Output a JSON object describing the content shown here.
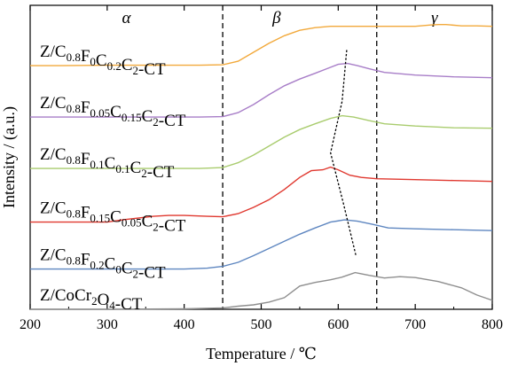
{
  "chart_data": {
    "type": "line",
    "xlabel": "Temperature / ℃",
    "ylabel": "Intensity / (a.u.)",
    "xlim": [
      200,
      800
    ],
    "xticks": [
      200,
      300,
      400,
      500,
      600,
      700,
      800
    ],
    "ylim": [
      0,
      6.8
    ],
    "grid": false,
    "y_ticks_shown": false,
    "region_labels": [
      {
        "text": "α",
        "x": 325
      },
      {
        "text": "β",
        "x": 520
      },
      {
        "text": "γ",
        "x": 725
      }
    ],
    "vertical_lines": [
      450,
      650
    ],
    "peak_trend_points": [
      [
        611,
        5.8
      ],
      [
        605,
        4.65
      ],
      [
        590,
        3.5
      ],
      [
        607,
        2.35
      ],
      [
        623,
        1.2
      ]
    ],
    "series": [
      {
        "name": "Z/C0.8F0C0.2C2-CT",
        "parts": [
          [
            "Z/C",
            ""
          ],
          [
            "0.8",
            "sub"
          ],
          [
            "F",
            ""
          ],
          [
            "0",
            "sub"
          ],
          [
            "C",
            ""
          ],
          [
            "0.2",
            "sub"
          ],
          [
            "C",
            ""
          ],
          [
            "2",
            "sub"
          ],
          [
            "-CT",
            ""
          ]
        ],
        "color": "#F2A93B",
        "x": [
          200,
          240,
          300,
          360,
          420,
          450,
          470,
          490,
          510,
          530,
          550,
          570,
          590,
          610,
          630,
          660,
          700,
          720,
          730,
          740,
          760,
          780,
          800
        ],
        "y": [
          5.45,
          5.45,
          5.46,
          5.46,
          5.46,
          5.47,
          5.55,
          5.75,
          5.95,
          6.12,
          6.24,
          6.3,
          6.33,
          6.33,
          6.33,
          6.33,
          6.33,
          6.36,
          6.37,
          6.37,
          6.34,
          6.34,
          6.33
        ]
      },
      {
        "name": "Z/C0.8F0.05C0.15C2-CT",
        "parts": [
          [
            "Z/C",
            ""
          ],
          [
            "0.8",
            "sub"
          ],
          [
            "F",
            ""
          ],
          [
            "0.05",
            "sub"
          ],
          [
            "C",
            ""
          ],
          [
            "0.15",
            "sub"
          ],
          [
            "C",
            ""
          ],
          [
            "2",
            "sub"
          ],
          [
            "-CT",
            ""
          ]
        ],
        "color": "#A87EC8",
        "x": [
          200,
          300,
          420,
          450,
          470,
          490,
          510,
          530,
          550,
          570,
          585,
          600,
          612,
          625,
          640,
          660,
          700,
          750,
          800
        ],
        "y": [
          4.3,
          4.3,
          4.3,
          4.31,
          4.4,
          4.58,
          4.8,
          5.0,
          5.15,
          5.28,
          5.38,
          5.48,
          5.5,
          5.45,
          5.38,
          5.3,
          5.24,
          5.2,
          5.18
        ]
      },
      {
        "name": "Z/C0.8F0.1C0.1C2-CT",
        "parts": [
          [
            "Z/C",
            ""
          ],
          [
            "0.8",
            "sub"
          ],
          [
            "F",
            ""
          ],
          [
            "0.1",
            "sub"
          ],
          [
            "C",
            ""
          ],
          [
            "0.1",
            "sub"
          ],
          [
            "C",
            ""
          ],
          [
            "2",
            "sub"
          ],
          [
            "-CT",
            ""
          ]
        ],
        "color": "#A9CC6E",
        "x": [
          200,
          300,
          420,
          450,
          470,
          490,
          510,
          530,
          550,
          570,
          590,
          605,
          620,
          640,
          660,
          700,
          750,
          800
        ],
        "y": [
          3.15,
          3.15,
          3.15,
          3.17,
          3.28,
          3.45,
          3.65,
          3.85,
          4.02,
          4.15,
          4.27,
          4.33,
          4.3,
          4.22,
          4.15,
          4.1,
          4.06,
          4.05
        ]
      },
      {
        "name": "Z/C0.8F0.15C0.05C2-CT",
        "parts": [
          [
            "Z/C",
            ""
          ],
          [
            "0.8",
            "sub"
          ],
          [
            "F",
            ""
          ],
          [
            "0.15",
            "sub"
          ],
          [
            "C",
            ""
          ],
          [
            "0.05",
            "sub"
          ],
          [
            "C",
            ""
          ],
          [
            "2",
            "sub"
          ],
          [
            "-CT",
            ""
          ]
        ],
        "color": "#E0382F",
        "x": [
          200,
          300,
          320,
          340,
          360,
          380,
          400,
          430,
          450,
          470,
          490,
          510,
          530,
          550,
          565,
          580,
          590,
          600,
          615,
          630,
          650,
          700,
          750,
          800
        ],
        "y": [
          1.95,
          1.95,
          2.0,
          2.04,
          2.08,
          2.1,
          2.1,
          2.08,
          2.07,
          2.14,
          2.28,
          2.45,
          2.68,
          2.95,
          3.1,
          3.12,
          3.18,
          3.12,
          3.0,
          2.95,
          2.92,
          2.9,
          2.88,
          2.86
        ]
      },
      {
        "name": "Z/C0.8F0.2C0C2-CT",
        "parts": [
          [
            "Z/C",
            ""
          ],
          [
            "0.8",
            "sub"
          ],
          [
            "F",
            ""
          ],
          [
            "0.2",
            "sub"
          ],
          [
            "C",
            ""
          ],
          [
            "0",
            "sub"
          ],
          [
            "C",
            ""
          ],
          [
            "2",
            "sub"
          ],
          [
            "-CT",
            ""
          ]
        ],
        "color": "#5E86C0",
        "x": [
          200,
          300,
          400,
          430,
          450,
          470,
          490,
          510,
          530,
          550,
          570,
          590,
          608,
          625,
          645,
          665,
          700,
          750,
          800
        ],
        "y": [
          0.9,
          0.9,
          0.9,
          0.92,
          0.96,
          1.05,
          1.2,
          1.36,
          1.52,
          1.68,
          1.82,
          1.95,
          2.0,
          1.97,
          1.9,
          1.82,
          1.8,
          1.78,
          1.76
        ]
      },
      {
        "name": "Z/CoCr2O4-CT",
        "parts": [
          [
            "Z/CoCr",
            ""
          ],
          [
            "2",
            "sub"
          ],
          [
            "O",
            ""
          ],
          [
            "4",
            "sub"
          ],
          [
            "-CT",
            ""
          ]
        ],
        "color": "#8E8E8E",
        "x": [
          200,
          300,
          400,
          450,
          470,
          490,
          510,
          530,
          550,
          570,
          590,
          605,
          622,
          640,
          660,
          680,
          700,
          730,
          760,
          780,
          800
        ],
        "y": [
          0.0,
          0.0,
          0.01,
          0.03,
          0.07,
          0.1,
          0.16,
          0.26,
          0.52,
          0.6,
          0.66,
          0.72,
          0.82,
          0.76,
          0.7,
          0.73,
          0.71,
          0.62,
          0.48,
          0.32,
          0.2
        ]
      }
    ]
  }
}
